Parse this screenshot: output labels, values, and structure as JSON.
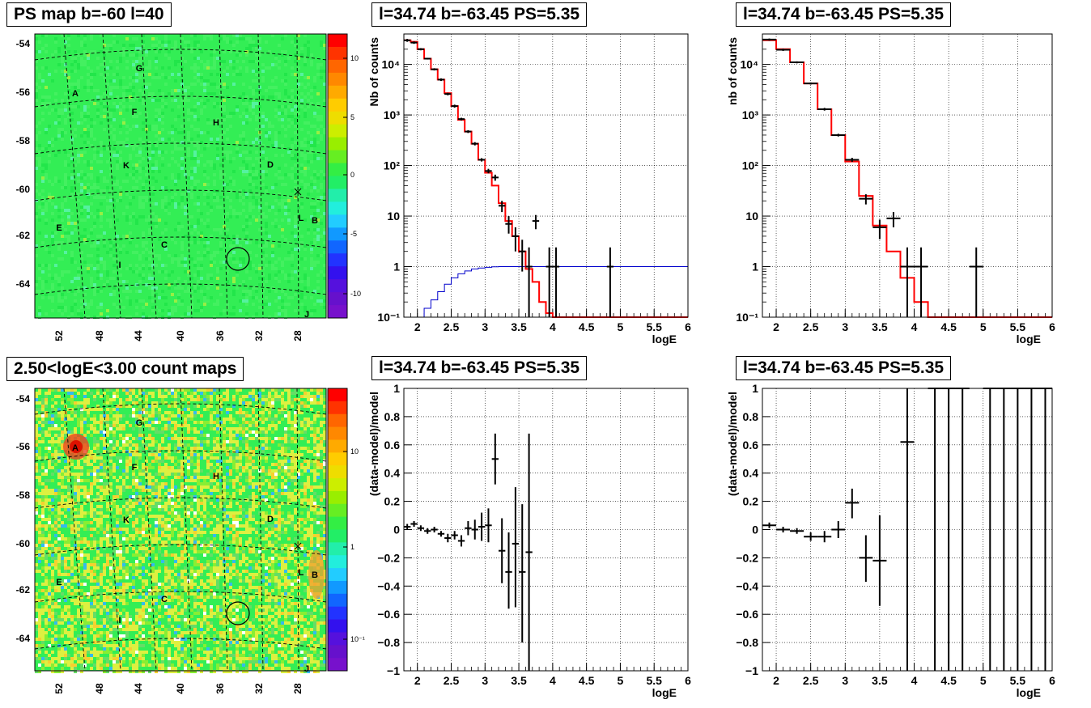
{
  "titles": {
    "map_top": "PS map b=-60 l=40",
    "map_bottom": "2.50<logE<3.00 count maps",
    "spec1": "l=34.74 b=-63.45 PS=5.35",
    "spec2": "l=34.74 b=-63.45 PS=5.35",
    "res1": "l=34.74 b=-63.45 PS=5.35",
    "res2": "l=34.74 b=-63.45 PS=5.35"
  },
  "maps": {
    "lon_ticks": [
      "52",
      "48",
      "44",
      "40",
      "36",
      "32",
      "28"
    ],
    "lat_ticks": [
      "-54",
      "-56",
      "-58",
      "-60",
      "-62",
      "-64"
    ],
    "source_labels": [
      {
        "t": "G"
      },
      {
        "t": "A"
      },
      {
        "t": "F"
      },
      {
        "t": "H"
      },
      {
        "t": "D"
      },
      {
        "t": "K"
      },
      {
        "t": "L"
      },
      {
        "t": "B"
      },
      {
        "t": "E"
      },
      {
        "t": "C"
      },
      {
        "t": "I"
      },
      {
        "t": "J"
      }
    ],
    "top_colorbar_labels": [
      "10",
      "5",
      "0",
      "-5",
      "-10"
    ],
    "bottom_colorbar_labels": [
      "10",
      "1",
      "10⁻¹"
    ]
  },
  "colors": {
    "model_line": "#ff0000",
    "exposure_line": "#0000cc",
    "data_points": "#000000",
    "map_base": "#33ee55"
  },
  "chart_data": [
    {
      "id": "spec1",
      "type": "line",
      "title": "l=34.74 b=-63.45 PS=5.35",
      "xlabel": "logE",
      "ylabel": "Nb of counts",
      "xlim": [
        1.8,
        6.0
      ],
      "ylim": [
        0.1,
        40000
      ],
      "yscale": "log",
      "xticks": [
        2,
        2.5,
        3,
        3.5,
        4,
        4.5,
        5,
        5.5,
        6
      ],
      "xtick_labels": [
        "2",
        "2.5",
        "3",
        "3.5",
        "4",
        "4.5",
        "5",
        "5.5",
        "6"
      ],
      "yticks": [
        0.1,
        1,
        10,
        100,
        1000,
        10000
      ],
      "ytick_labels": [
        "10⁻¹",
        "1",
        "10",
        "10²",
        "10³",
        "10⁴"
      ],
      "grid": true,
      "model_step": {
        "edges": [
          1.8,
          1.9,
          2.0,
          2.1,
          2.2,
          2.3,
          2.4,
          2.5,
          2.6,
          2.7,
          2.8,
          2.9,
          3.0,
          3.1,
          3.2,
          3.3,
          3.4,
          3.5,
          3.6,
          3.7,
          3.8,
          3.9,
          4.0,
          4.1,
          4.2,
          4.3,
          6.0
        ],
        "values": [
          30000,
          28000,
          20000,
          13000,
          8000,
          5000,
          2700,
          1500,
          800,
          470,
          270,
          130,
          72,
          40,
          18,
          8,
          4,
          2,
          0.9,
          0.5,
          0.2,
          0.12,
          0.1,
          0.1,
          0.1,
          0.1
        ]
      },
      "exposure_step": {
        "edges": [
          1.8,
          1.9,
          2.0,
          2.1,
          2.2,
          2.3,
          2.4,
          2.5,
          2.6,
          2.7,
          2.8,
          2.9,
          3.0,
          3.1,
          3.2,
          3.3,
          3.4,
          3.5,
          3.6,
          3.7,
          6.0
        ],
        "values": [
          0.05,
          0.07,
          0.1,
          0.15,
          0.22,
          0.32,
          0.45,
          0.6,
          0.72,
          0.82,
          0.9,
          0.94,
          0.97,
          0.99,
          1.0,
          1.0,
          1.0,
          1.0,
          1.0,
          1.0,
          1.0
        ]
      },
      "points": [
        {
          "x": 1.85,
          "y": 30000,
          "lo": 28000,
          "hi": 32000
        },
        {
          "x": 1.95,
          "y": 27000,
          "lo": 25500,
          "hi": 28500
        },
        {
          "x": 2.05,
          "y": 20000,
          "lo": 19000,
          "hi": 21000
        },
        {
          "x": 2.15,
          "y": 13000,
          "lo": 12500,
          "hi": 13500
        },
        {
          "x": 2.25,
          "y": 8000,
          "lo": 7600,
          "hi": 8400
        },
        {
          "x": 2.35,
          "y": 5000,
          "lo": 4700,
          "hi": 5300
        },
        {
          "x": 2.45,
          "y": 2600,
          "lo": 2450,
          "hi": 2750
        },
        {
          "x": 2.55,
          "y": 1500,
          "lo": 1400,
          "hi": 1600
        },
        {
          "x": 2.65,
          "y": 830,
          "lo": 780,
          "hi": 880
        },
        {
          "x": 2.75,
          "y": 470,
          "lo": 440,
          "hi": 500
        },
        {
          "x": 2.85,
          "y": 270,
          "lo": 250,
          "hi": 290
        },
        {
          "x": 2.95,
          "y": 130,
          "lo": 120,
          "hi": 140
        },
        {
          "x": 3.05,
          "y": 78,
          "lo": 70,
          "hi": 86
        },
        {
          "x": 3.15,
          "y": 58,
          "lo": 50,
          "hi": 66
        },
        {
          "x": 3.25,
          "y": 16,
          "lo": 12,
          "hi": 20
        },
        {
          "x": 3.35,
          "y": 7,
          "lo": 4.5,
          "hi": 10
        },
        {
          "x": 3.45,
          "y": 4,
          "lo": 2,
          "hi": 6
        },
        {
          "x": 3.55,
          "y": 2,
          "lo": 0.8,
          "hi": 3.4
        },
        {
          "x": 3.65,
          "y": 1,
          "lo": 0.1,
          "hi": 2.4
        },
        {
          "x": 3.75,
          "y": 8,
          "lo": 5.5,
          "hi": 10.5
        },
        {
          "x": 3.95,
          "y": 1,
          "lo": 0.1,
          "hi": 2.4
        },
        {
          "x": 4.05,
          "y": 1,
          "lo": 0.1,
          "hi": 2.4
        },
        {
          "x": 4.85,
          "y": 1,
          "lo": 0.1,
          "hi": 2.4
        }
      ]
    },
    {
      "id": "spec2",
      "type": "line",
      "title": "l=34.74 b=-63.45 PS=5.35",
      "xlabel": "logE",
      "ylabel": "nb of counts",
      "xlim": [
        1.8,
        6.0
      ],
      "ylim": [
        0.1,
        40000
      ],
      "yscale": "log",
      "xticks": [
        2,
        2.5,
        3,
        3.5,
        4,
        4.5,
        5,
        5.5,
        6
      ],
      "xtick_labels": [
        "2",
        "2.5",
        "3",
        "3.5",
        "4",
        "4.5",
        "5",
        "5.5",
        "6"
      ],
      "yticks": [
        0.1,
        1,
        10,
        100,
        1000,
        10000
      ],
      "ytick_labels": [
        "10⁻¹",
        "1",
        "10",
        "10²",
        "10³",
        "10⁴"
      ],
      "grid": true,
      "model_step": {
        "edges": [
          1.8,
          2.0,
          2.2,
          2.4,
          2.6,
          2.8,
          3.0,
          3.2,
          3.4,
          3.6,
          3.8,
          4.0,
          4.2,
          6.0
        ],
        "values": [
          30000,
          20000,
          11000,
          4200,
          1300,
          400,
          120,
          25,
          6.5,
          2,
          0.6,
          0.2,
          0.1
        ]
      },
      "points": [
        {
          "x": 1.9,
          "y": 31000,
          "lo": 29500,
          "hi": 32500
        },
        {
          "x": 2.1,
          "y": 19500,
          "lo": 18500,
          "hi": 20500
        },
        {
          "x": 2.3,
          "y": 11000,
          "lo": 10500,
          "hi": 11500
        },
        {
          "x": 2.5,
          "y": 4200,
          "lo": 4000,
          "hi": 4400
        },
        {
          "x": 2.7,
          "y": 1300,
          "lo": 1220,
          "hi": 1380
        },
        {
          "x": 2.9,
          "y": 400,
          "lo": 375,
          "hi": 425
        },
        {
          "x": 3.1,
          "y": 130,
          "lo": 118,
          "hi": 142
        },
        {
          "x": 3.3,
          "y": 22,
          "lo": 17,
          "hi": 27
        },
        {
          "x": 3.5,
          "y": 6,
          "lo": 3.5,
          "hi": 8.5
        },
        {
          "x": 3.7,
          "y": 9,
          "lo": 6,
          "hi": 12
        },
        {
          "x": 3.9,
          "y": 1,
          "lo": 0.1,
          "hi": 2.4
        },
        {
          "x": 4.1,
          "y": 1,
          "lo": 0.1,
          "hi": 2.4
        },
        {
          "x": 4.9,
          "y": 1,
          "lo": 0.1,
          "hi": 2.4
        }
      ]
    },
    {
      "id": "res1",
      "type": "scatter",
      "title": "l=34.74 b=-63.45 PS=5.35",
      "xlabel": "logE",
      "ylabel": "(data-model)/model",
      "xlim": [
        1.8,
        6.0
      ],
      "ylim": [
        -1,
        1
      ],
      "xticks": [
        2,
        2.5,
        3,
        3.5,
        4,
        4.5,
        5,
        5.5,
        6
      ],
      "xtick_labels": [
        "2",
        "2.5",
        "3",
        "3.5",
        "4",
        "4.5",
        "5",
        "5.5",
        "6"
      ],
      "yticks": [
        -1,
        -0.8,
        -0.6,
        -0.4,
        -0.2,
        0,
        0.2,
        0.4,
        0.6,
        0.8,
        1
      ],
      "ytick_labels": [
        "−1",
        "−0.8",
        "−0.6",
        "−0.4",
        "−0.2",
        "0",
        "0.2",
        "0.4",
        "0.6",
        "0.8",
        "1"
      ],
      "grid": true,
      "points": [
        {
          "x": 1.85,
          "y": 0.02,
          "lo": 0.0,
          "hi": 0.04
        },
        {
          "x": 1.95,
          "y": 0.04,
          "lo": 0.02,
          "hi": 0.06
        },
        {
          "x": 2.05,
          "y": 0.01,
          "lo": -0.01,
          "hi": 0.03
        },
        {
          "x": 2.15,
          "y": -0.01,
          "lo": -0.03,
          "hi": 0.01
        },
        {
          "x": 2.25,
          "y": 0.0,
          "lo": -0.02,
          "hi": 0.02
        },
        {
          "x": 2.35,
          "y": -0.03,
          "lo": -0.05,
          "hi": -0.01
        },
        {
          "x": 2.45,
          "y": -0.06,
          "lo": -0.09,
          "hi": -0.03
        },
        {
          "x": 2.55,
          "y": -0.04,
          "lo": -0.07,
          "hi": -0.01
        },
        {
          "x": 2.65,
          "y": -0.08,
          "lo": -0.12,
          "hi": -0.04
        },
        {
          "x": 2.75,
          "y": 0.01,
          "lo": -0.04,
          "hi": 0.06
        },
        {
          "x": 2.85,
          "y": 0.0,
          "lo": -0.07,
          "hi": 0.07
        },
        {
          "x": 2.95,
          "y": 0.02,
          "lo": -0.08,
          "hi": 0.12
        },
        {
          "x": 3.05,
          "y": 0.03,
          "lo": -0.09,
          "hi": 0.15
        },
        {
          "x": 3.15,
          "y": 0.5,
          "lo": 0.32,
          "hi": 0.68
        },
        {
          "x": 3.25,
          "y": -0.15,
          "lo": -0.38,
          "hi": 0.08
        },
        {
          "x": 3.35,
          "y": -0.3,
          "lo": -0.56,
          "hi": -0.02
        },
        {
          "x": 3.45,
          "y": -0.1,
          "lo": -0.55,
          "hi": 0.3
        },
        {
          "x": 3.55,
          "y": -0.3,
          "lo": -0.8,
          "hi": 0.18
        },
        {
          "x": 3.65,
          "y": -0.16,
          "lo": -1.0,
          "hi": 0.68
        }
      ]
    },
    {
      "id": "res2",
      "type": "scatter",
      "title": "l=34.74 b=-63.45 PS=5.35",
      "xlabel": "logE",
      "ylabel": "(data-model)/model",
      "xlim": [
        1.8,
        6.0
      ],
      "ylim": [
        -1,
        1
      ],
      "xticks": [
        2,
        2.5,
        3,
        3.5,
        4,
        4.5,
        5,
        5.5,
        6
      ],
      "xtick_labels": [
        "2",
        "2.5",
        "3",
        "3.5",
        "4",
        "4.5",
        "5",
        "5.5",
        "6"
      ],
      "yticks": [
        -1,
        -0.8,
        -0.6,
        -0.4,
        -0.2,
        0,
        0.2,
        0.4,
        0.6,
        0.8,
        1
      ],
      "ytick_labels": [
        "−1",
        "−0.8",
        "−0.6",
        "−0.4",
        "−0.2",
        "0",
        "0.2",
        "0.4",
        "0.6",
        "0.8",
        "1"
      ],
      "grid": true,
      "points": [
        {
          "x": 1.9,
          "y": 0.03,
          "lo": 0.01,
          "hi": 0.05
        },
        {
          "x": 2.1,
          "y": 0.0,
          "lo": -0.02,
          "hi": 0.02
        },
        {
          "x": 2.3,
          "y": -0.01,
          "lo": -0.03,
          "hi": 0.01
        },
        {
          "x": 2.5,
          "y": -0.05,
          "lo": -0.08,
          "hi": -0.02
        },
        {
          "x": 2.7,
          "y": -0.05,
          "lo": -0.09,
          "hi": -0.01
        },
        {
          "x": 2.9,
          "y": 0.0,
          "lo": -0.06,
          "hi": 0.06
        },
        {
          "x": 3.1,
          "y": 0.19,
          "lo": 0.08,
          "hi": 0.29
        },
        {
          "x": 3.3,
          "y": -0.2,
          "lo": -0.37,
          "hi": -0.04
        },
        {
          "x": 3.5,
          "y": -0.22,
          "lo": -0.54,
          "hi": 0.1
        },
        {
          "x": 3.9,
          "y": 0.62,
          "lo": -1.0,
          "hi": 1.0
        },
        {
          "x": 4.3,
          "y": 1.0,
          "lo": -1.0,
          "hi": 1.0
        },
        {
          "x": 4.5,
          "y": 1.0,
          "lo": -1.0,
          "hi": 1.0
        },
        {
          "x": 4.7,
          "y": 1.0,
          "lo": -1.0,
          "hi": 1.0
        },
        {
          "x": 5.1,
          "y": 1.0,
          "lo": -1.0,
          "hi": 1.0
        },
        {
          "x": 5.3,
          "y": 1.0,
          "lo": -1.0,
          "hi": 1.0
        },
        {
          "x": 5.5,
          "y": 1.0,
          "lo": -1.0,
          "hi": 1.0
        },
        {
          "x": 5.7,
          "y": 1.0,
          "lo": -1.0,
          "hi": 1.0
        },
        {
          "x": 5.9,
          "y": 1.0,
          "lo": -1.0,
          "hi": 1.0
        }
      ]
    }
  ]
}
